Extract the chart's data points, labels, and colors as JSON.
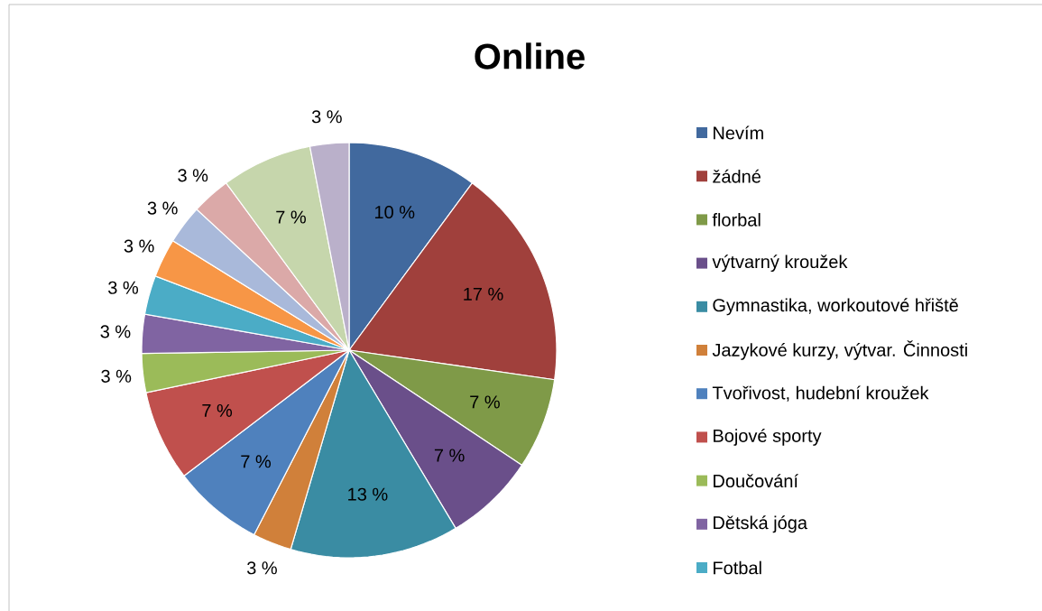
{
  "chart_data": {
    "type": "pie",
    "title": "Online",
    "categories": [
      "Nevím",
      "žádné",
      "florbal",
      "výtvarný kroužek",
      "Gymnastika, workoutové hřiště",
      "Jazykové kurzy, výtvar. Činnosti",
      "Tvořivost, hudební kroužek",
      "Bojové sporty",
      "Doučování",
      "Dětská jóga",
      "Fotbal",
      null,
      null,
      null,
      null,
      null
    ],
    "values": [
      10,
      17,
      7,
      7,
      13,
      3,
      7,
      7,
      3,
      3,
      3,
      3,
      3,
      3,
      7,
      3
    ],
    "value_labels": [
      "10 %",
      "17 %",
      "7 %",
      "7 %",
      "13 %",
      "3 %",
      "7 %",
      "7 %",
      "3 %",
      "3 %",
      "3 %",
      "3 %",
      "3 %",
      "3 %",
      "7 %",
      "3 %"
    ],
    "colors": [
      "#41699E",
      "#A0403C",
      "#7F9A48",
      "#6A4F8A",
      "#3A8CA3",
      "#D0803A",
      "#4F81BD",
      "#C0504D",
      "#9BBB59",
      "#8064A2",
      "#4BACC6",
      "#F79646",
      "#A9B9DA",
      "#DBA9A8",
      "#C6D6AC",
      "#BAB0CA"
    ],
    "legend": "right"
  }
}
